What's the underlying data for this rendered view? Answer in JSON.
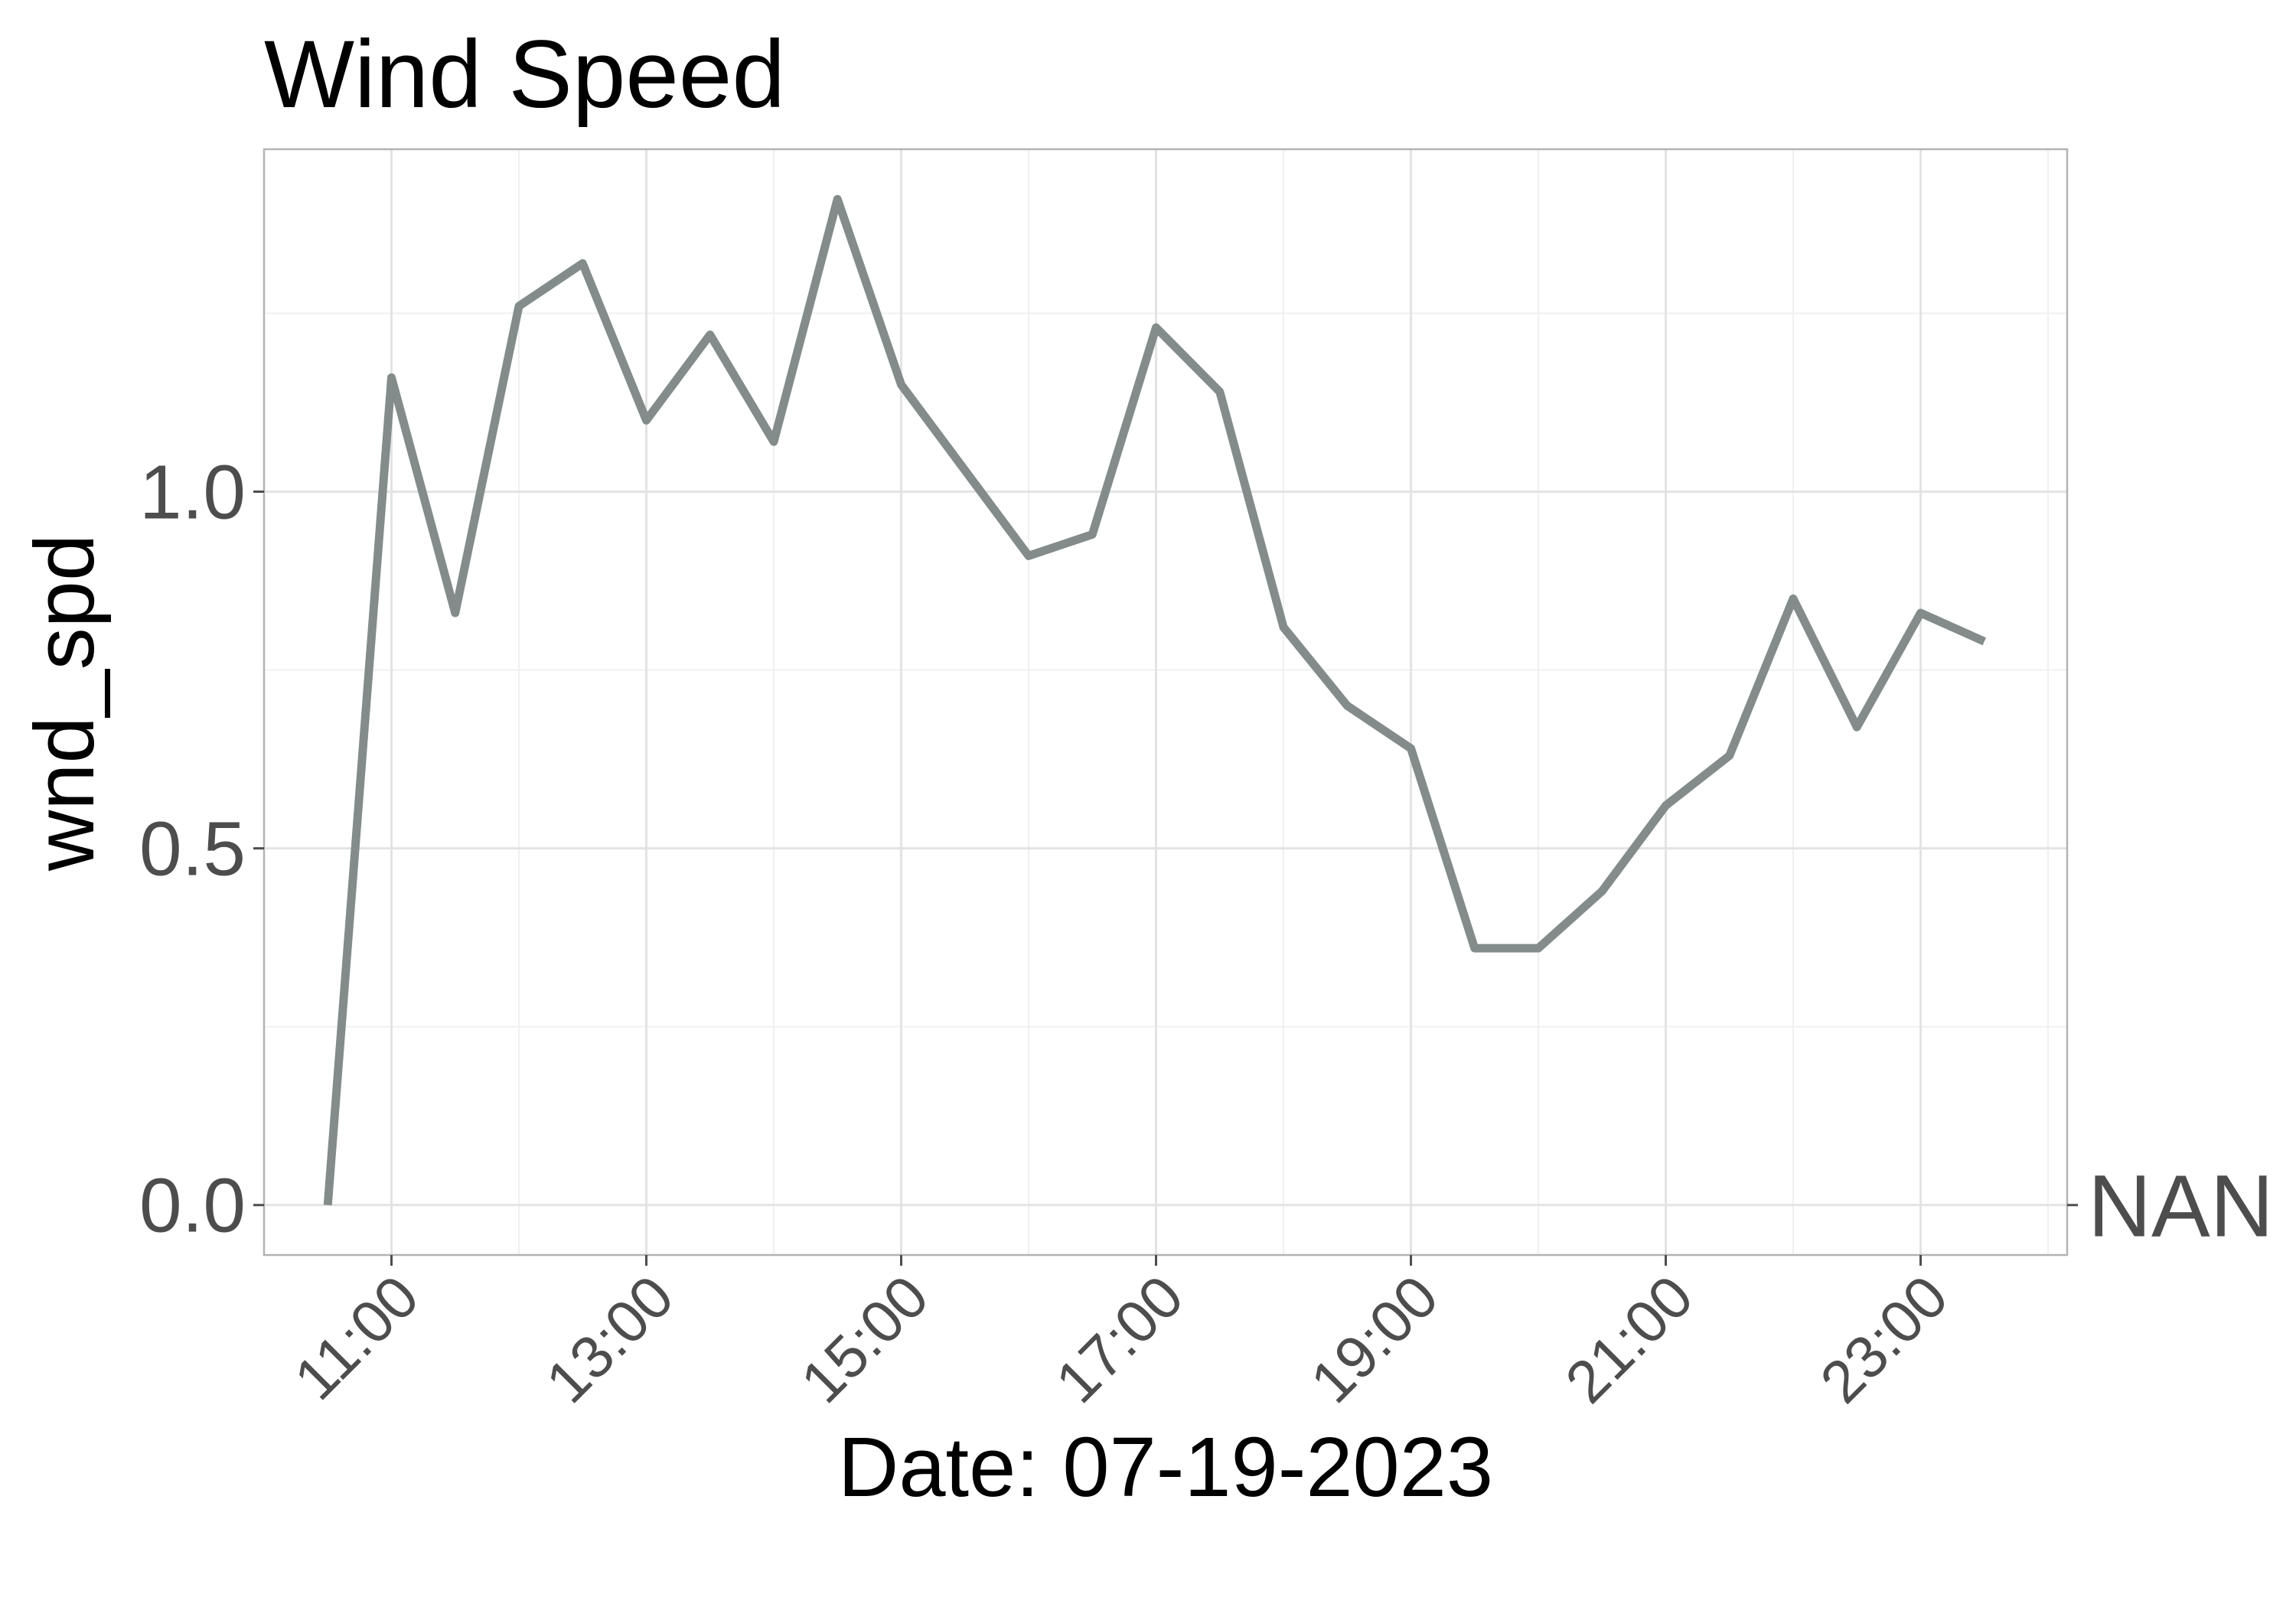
{
  "chart_data": {
    "type": "line",
    "title": "Wind Speed",
    "xlabel": "Date: 07-19-2023",
    "ylabel": "wnd_spd",
    "x_unit": "hour of day",
    "xlim": [
      10.0,
      24.15
    ],
    "ylim": [
      -0.07,
      1.48
    ],
    "x_ticks": [
      11,
      13,
      15,
      17,
      19,
      21,
      23
    ],
    "x_tick_labels": [
      "11:00",
      "13:00",
      "15:00",
      "17:00",
      "19:00",
      "21:00",
      "23:00"
    ],
    "y_ticks": [
      0.0,
      0.5,
      1.0
    ],
    "y_tick_labels": [
      "0.0",
      "0.5",
      "1.0"
    ],
    "grid": true,
    "line_color": "#838C8A",
    "annotation": {
      "text": "NAN",
      "y": 0.0,
      "placement": "right margin"
    },
    "x": [
      10.5,
      11.0,
      11.5,
      12.0,
      12.5,
      13.0,
      13.5,
      14.0,
      14.5,
      15.0,
      15.5,
      16.0,
      16.5,
      17.0,
      17.5,
      18.0,
      18.5,
      19.0,
      19.5,
      20.0,
      20.5,
      21.0,
      21.5,
      22.0,
      22.5,
      23.0,
      23.5
    ],
    "values": [
      0.0,
      1.16,
      0.83,
      1.26,
      1.32,
      1.1,
      1.22,
      1.07,
      1.41,
      1.15,
      1.03,
      0.91,
      0.94,
      1.23,
      1.14,
      0.81,
      0.7,
      0.64,
      0.36,
      0.36,
      0.44,
      0.56,
      0.63,
      0.85,
      0.67,
      0.83,
      0.79
    ]
  }
}
